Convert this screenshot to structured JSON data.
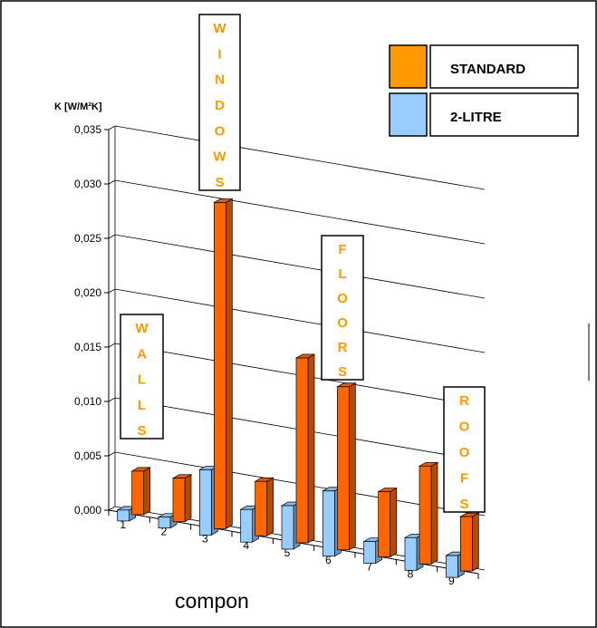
{
  "chart_data": {
    "type": "bar",
    "title": "",
    "ylabel": "K [W/M²K]",
    "xlabel": "compon",
    "ylim": [
      0,
      0.035
    ],
    "yticks": [
      "0,000",
      "0,005",
      "0,010",
      "0,015",
      "0,020",
      "0,025",
      "0,030",
      "0,035"
    ],
    "categories": [
      "1",
      "2",
      "3",
      "4",
      "5",
      "6",
      "7",
      "8",
      "9"
    ],
    "series": [
      {
        "name": "2-LITRE",
        "color": "#99ccff",
        "values": [
          0.001,
          0.001,
          0.006,
          0.003,
          0.004,
          0.006,
          0.002,
          0.003,
          0.002
        ]
      },
      {
        "name": "STANDARD",
        "color": "#ff6600",
        "values": [
          0.004,
          0.004,
          0.03,
          0.005,
          0.017,
          0.015,
          0.006,
          0.009,
          0.005
        ]
      }
    ],
    "grid": true,
    "legend_position": "top-right",
    "annotations": [
      {
        "text": "WALLS",
        "target_category": "1"
      },
      {
        "text": "WINDOWS",
        "target_category": "3"
      },
      {
        "text": "FLOORS",
        "target_category": "6"
      },
      {
        "text": "ROOFS",
        "target_category": "9"
      }
    ]
  }
}
